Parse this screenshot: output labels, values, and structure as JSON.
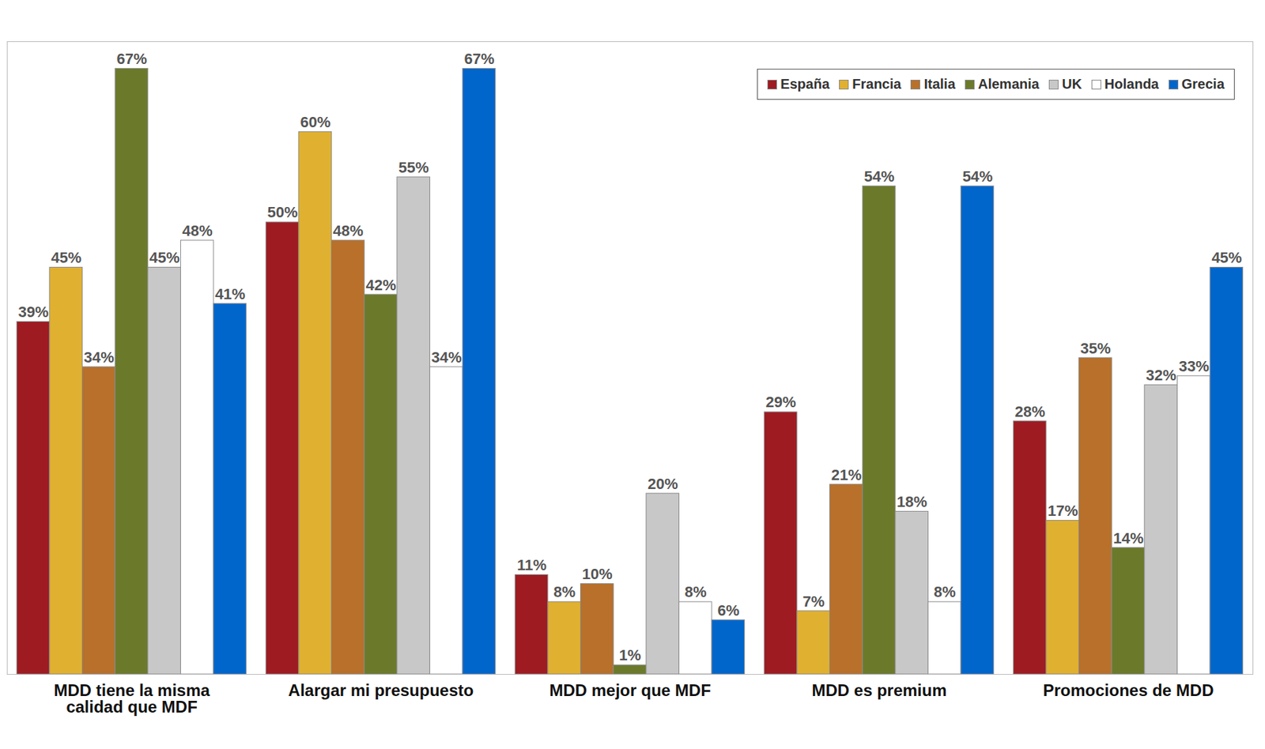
{
  "chart_data": {
    "type": "bar",
    "categories": [
      "MDD tiene la misma calidad que MDF",
      "Alargar mi presupuesto",
      "MDD mejor que MDF",
      "MDD es premium",
      "Promociones de MDD"
    ],
    "series": [
      {
        "name": "España",
        "color": "#9e1b22",
        "values": [
          39,
          50,
          11,
          29,
          28
        ],
        "value_labels": [
          "39%",
          "50%",
          "11%",
          "29%",
          "28%"
        ]
      },
      {
        "name": "Francia",
        "color": "#e0b030",
        "values": [
          45,
          60,
          8,
          7,
          17
        ],
        "value_labels": [
          "45%",
          "60%",
          "8%",
          "7%",
          "17%"
        ]
      },
      {
        "name": "Italia",
        "color": "#b8702a",
        "values": [
          34,
          48,
          10,
          21,
          35
        ],
        "value_labels": [
          "34%",
          "48%",
          "10%",
          "21%",
          "35%"
        ]
      },
      {
        "name": "Alemania",
        "color": "#6b7a2a",
        "values": [
          67,
          42,
          1,
          54,
          14
        ],
        "value_labels": [
          "67%",
          "42%",
          "1%",
          "54%",
          "14%"
        ]
      },
      {
        "name": "UK",
        "color": "#c8c8c8",
        "values": [
          45,
          55,
          20,
          18,
          32
        ],
        "value_labels": [
          "45%",
          "55%",
          "20%",
          "18%",
          "32%"
        ]
      },
      {
        "name": "Holanda",
        "color": "#ffffff",
        "values": [
          48,
          34,
          8,
          8,
          33
        ],
        "value_labels": [
          "48%",
          "34%",
          "8%",
          "8%",
          "33%"
        ]
      },
      {
        "name": "Grecia",
        "color": "#0066cc",
        "values": [
          41,
          67,
          6,
          54,
          45
        ],
        "value_labels": [
          "41%",
          "67%",
          "6%",
          "54%",
          "45%"
        ]
      }
    ],
    "ylim": [
      0,
      70
    ],
    "yticks": [],
    "tick_labels": "x",
    "data_labels": true,
    "legend": "top-right",
    "grid": false
  }
}
